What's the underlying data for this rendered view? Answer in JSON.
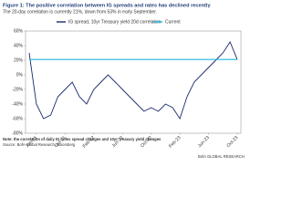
{
  "chart_data": {
    "type": "line",
    "title": "Figure 1: The positive correlation between IG spreads and rates has declined recently",
    "subtitle": "The 20-day correlation is currently 21%, down from 53% in early September.",
    "categories": [
      null,
      "Jun-21",
      null,
      null,
      null,
      "Oct-21",
      null,
      null,
      null,
      "Feb-22",
      null,
      null,
      null,
      "Jun-22",
      null,
      null,
      null,
      "Oct-22",
      null,
      null,
      null,
      "Feb-23",
      null,
      null,
      null,
      "Jun-23",
      null,
      null,
      null,
      "Oct-23"
    ],
    "series": [
      {
        "name": "IG spread, 10yr Treasury yield 20d correlation",
        "color": "#1a2a6c",
        "values": [
          30,
          -40,
          -60,
          -55,
          -30,
          -20,
          -10,
          -30,
          -40,
          -20,
          -10,
          0,
          -10,
          -20,
          -30,
          -40,
          -50,
          -45,
          -50,
          -40,
          -45,
          -60,
          -30,
          -10,
          0,
          10,
          20,
          30,
          45,
          21
        ]
      },
      {
        "name": "Current",
        "color": "#22b5e0",
        "values": [
          21,
          21,
          21,
          21,
          21,
          21,
          21,
          21,
          21,
          21,
          21,
          21,
          21,
          21,
          21,
          21,
          21,
          21,
          21,
          21,
          21,
          21,
          21,
          21,
          21,
          21,
          21,
          21,
          21,
          21
        ]
      }
    ],
    "ylim": [
      -80,
      60
    ],
    "yticks": [
      {
        "value": -80,
        "label": "-80%"
      },
      {
        "value": -60,
        "label": "-60%"
      },
      {
        "value": -40,
        "label": "-40%"
      },
      {
        "value": -20,
        "label": "-20%"
      },
      {
        "value": 0,
        "label": "0%"
      },
      {
        "value": 20,
        "label": "20%"
      },
      {
        "value": 40,
        "label": "40%"
      },
      {
        "value": 60,
        "label": "60%"
      }
    ],
    "note": "Note: the correlation of daily IG index spread changes and 10yr Treasury yield changes",
    "source": "Source: BofA Global Research, Bloomberg",
    "brand": "BofA GLOBAL RESEARCH"
  }
}
